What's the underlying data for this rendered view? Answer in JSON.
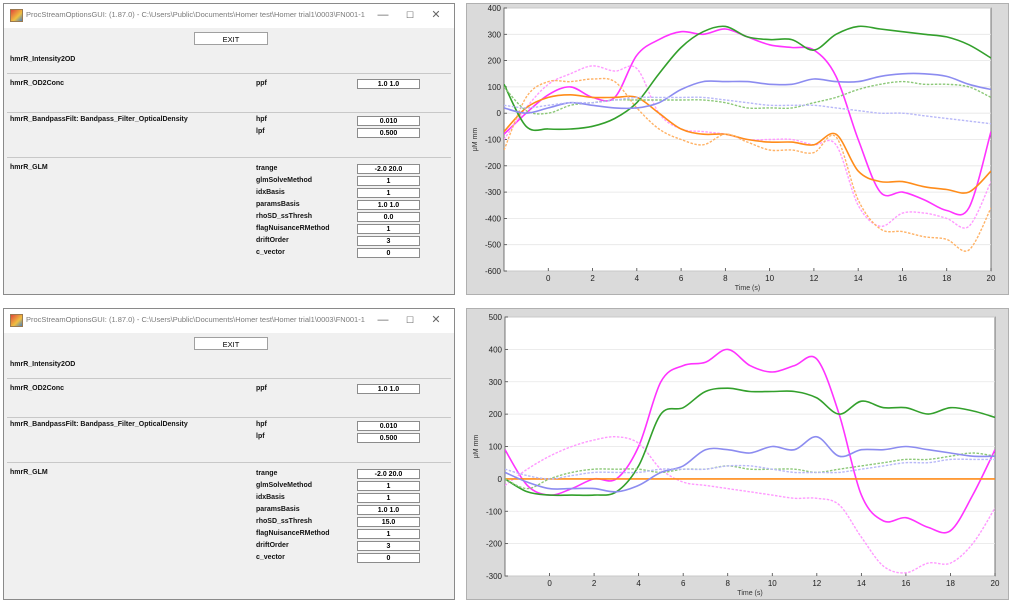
{
  "windows": [
    {
      "title": "ProcStreamOptionsGUI: (1.87.0) - C:\\Users\\Public\\Documents\\Homer test\\Homer trial1\\0003\\FN001-1",
      "exit_label": "EXIT",
      "functions": [
        {
          "name": "hmrR_Intensity2OD",
          "params": []
        },
        {
          "name": "hmrR_OD2Conc",
          "params": [
            {
              "label": "ppf",
              "value": "1.0 1.0"
            }
          ]
        },
        {
          "name": "hmrR_BandpassFilt: Bandpass_Filter_OpticalDensity",
          "params": [
            {
              "label": "hpf",
              "value": "0.010"
            },
            {
              "label": "lpf",
              "value": "0.500"
            }
          ]
        },
        {
          "name": "hmrR_GLM",
          "params": [
            {
              "label": "trange",
              "value": "-2.0 20.0"
            },
            {
              "label": "glmSolveMethod",
              "value": "1"
            },
            {
              "label": "idxBasis",
              "value": "1"
            },
            {
              "label": "paramsBasis",
              "value": "1.0 1.0"
            },
            {
              "label": "rhoSD_ssThresh",
              "value": "0.0"
            },
            {
              "label": "flagNuisanceRMethod",
              "value": "1"
            },
            {
              "label": "driftOrder",
              "value": "3"
            },
            {
              "label": "c_vector",
              "value": "0"
            }
          ]
        }
      ]
    },
    {
      "title": "ProcStreamOptionsGUI: (1.87.0) - C:\\Users\\Public\\Documents\\Homer test\\Homer trial1\\0003\\FN001-1",
      "exit_label": "EXIT",
      "functions": [
        {
          "name": "hmrR_Intensity2OD",
          "params": []
        },
        {
          "name": "hmrR_OD2Conc",
          "params": [
            {
              "label": "ppf",
              "value": "1.0 1.0"
            }
          ]
        },
        {
          "name": "hmrR_BandpassFilt: Bandpass_Filter_OpticalDensity",
          "params": [
            {
              "label": "hpf",
              "value": "0.010"
            },
            {
              "label": "lpf",
              "value": "0.500"
            }
          ]
        },
        {
          "name": "hmrR_GLM",
          "params": [
            {
              "label": "trange",
              "value": "-2.0 20.0"
            },
            {
              "label": "glmSolveMethod",
              "value": "1"
            },
            {
              "label": "idxBasis",
              "value": "1"
            },
            {
              "label": "paramsBasis",
              "value": "1.0 1.0"
            },
            {
              "label": "rhoSD_ssThresh",
              "value": "15.0"
            },
            {
              "label": "flagNuisanceRMethod",
              "value": "1"
            },
            {
              "label": "driftOrder",
              "value": "3"
            },
            {
              "label": "c_vector",
              "value": "0"
            }
          ]
        }
      ]
    }
  ],
  "chart_data": [
    {
      "type": "line",
      "xlabel": "Time (s)",
      "ylabel": "μM mm",
      "xlim": [
        -2,
        20
      ],
      "ylim": [
        -600,
        400
      ],
      "xticks": [
        0,
        2,
        4,
        6,
        8,
        10,
        12,
        14,
        16,
        18,
        20
      ],
      "yticks": [
        -600,
        -500,
        -400,
        -300,
        -200,
        -100,
        0,
        100,
        200,
        300,
        400
      ],
      "x": [
        -2,
        -1,
        0,
        1,
        2,
        3,
        4,
        5,
        6,
        7,
        8,
        9,
        10,
        11,
        12,
        13,
        14,
        15,
        16,
        17,
        18,
        19,
        20
      ],
      "series": [
        {
          "color": "#ff33ff",
          "style": "solid",
          "values": [
            -80,
            0,
            70,
            100,
            60,
            60,
            220,
            280,
            310,
            300,
            320,
            290,
            260,
            250,
            240,
            140,
            -100,
            -300,
            -300,
            -330,
            -370,
            -360,
            -70
          ]
        },
        {
          "color": "#ff99ff",
          "style": "dashed",
          "values": [
            -100,
            20,
            110,
            150,
            180,
            160,
            170,
            0,
            -60,
            -70,
            -80,
            -100,
            -100,
            -100,
            -120,
            -120,
            -350,
            -430,
            -380,
            -380,
            -400,
            -430,
            -260
          ]
        },
        {
          "color": "#ff8c1a",
          "style": "solid",
          "values": [
            -70,
            20,
            60,
            70,
            60,
            60,
            60,
            0,
            -60,
            -80,
            -80,
            -100,
            -110,
            -110,
            -120,
            -80,
            -220,
            -260,
            -260,
            -280,
            -290,
            -300,
            -220
          ]
        },
        {
          "color": "#ffb266",
          "style": "dashed",
          "values": [
            -140,
            60,
            120,
            120,
            130,
            120,
            20,
            -60,
            -100,
            -120,
            -80,
            -110,
            -140,
            -140,
            -150,
            -90,
            -330,
            -440,
            -450,
            -470,
            -480,
            -520,
            -360
          ]
        },
        {
          "color": "#33a02c",
          "style": "solid",
          "values": [
            110,
            -50,
            -60,
            -60,
            -50,
            -20,
            40,
            150,
            250,
            310,
            330,
            290,
            280,
            280,
            240,
            300,
            330,
            320,
            310,
            300,
            290,
            260,
            210
          ]
        },
        {
          "color": "#8cc878",
          "style": "dashed",
          "values": [
            100,
            10,
            0,
            30,
            40,
            50,
            50,
            50,
            50,
            50,
            40,
            20,
            20,
            20,
            40,
            60,
            90,
            110,
            120,
            110,
            110,
            100,
            60
          ]
        },
        {
          "color": "#8c8cf0",
          "style": "solid",
          "values": [
            20,
            0,
            20,
            40,
            30,
            20,
            20,
            40,
            90,
            120,
            120,
            120,
            110,
            110,
            130,
            120,
            120,
            140,
            150,
            150,
            140,
            110,
            90
          ]
        },
        {
          "color": "#b8b8f8",
          "style": "dashed",
          "values": [
            30,
            20,
            30,
            40,
            40,
            50,
            60,
            60,
            60,
            60,
            50,
            40,
            30,
            30,
            30,
            20,
            10,
            0,
            0,
            -10,
            -20,
            -30,
            -40
          ]
        }
      ]
    },
    {
      "type": "line",
      "xlabel": "Time (s)",
      "ylabel": "μM mm",
      "xlim": [
        -2,
        20
      ],
      "ylim": [
        -300,
        500
      ],
      "xticks": [
        0,
        2,
        4,
        6,
        8,
        10,
        12,
        14,
        16,
        18,
        20
      ],
      "yticks": [
        -300,
        -200,
        -100,
        0,
        100,
        200,
        300,
        400,
        500
      ],
      "x": [
        -2,
        -1,
        0,
        1,
        2,
        3,
        4,
        5,
        6,
        7,
        8,
        9,
        10,
        11,
        12,
        13,
        14,
        15,
        16,
        17,
        18,
        19,
        20
      ],
      "series": [
        {
          "color": "#ff33ff",
          "style": "solid",
          "values": [
            90,
            -20,
            -50,
            -30,
            0,
            0,
            100,
            300,
            350,
            360,
            400,
            350,
            330,
            350,
            370,
            200,
            -50,
            -130,
            -120,
            -150,
            -160,
            -50,
            90
          ]
        },
        {
          "color": "#ff99ff",
          "style": "dashed",
          "values": [
            -20,
            30,
            70,
            100,
            120,
            130,
            110,
            30,
            -10,
            -20,
            -30,
            -40,
            -50,
            -60,
            -60,
            -80,
            -180,
            -270,
            -290,
            -260,
            -260,
            -200,
            -90
          ]
        },
        {
          "color": "#ff8c1a",
          "style": "solid",
          "values": [
            0,
            0,
            0,
            0,
            0,
            0,
            0,
            0,
            0,
            0,
            0,
            0,
            0,
            0,
            0,
            0,
            0,
            0,
            0,
            0,
            0,
            0,
            0
          ]
        },
        {
          "color": "#33a02c",
          "style": "solid",
          "values": [
            0,
            -40,
            -50,
            -50,
            -50,
            -40,
            40,
            200,
            220,
            270,
            280,
            270,
            270,
            270,
            250,
            200,
            240,
            220,
            220,
            200,
            220,
            210,
            190
          ]
        },
        {
          "color": "#8cc878",
          "style": "dashed",
          "values": [
            0,
            -30,
            0,
            20,
            30,
            30,
            30,
            20,
            30,
            30,
            40,
            30,
            30,
            30,
            20,
            30,
            40,
            50,
            60,
            60,
            70,
            80,
            70
          ]
        },
        {
          "color": "#8c8cf0",
          "style": "solid",
          "values": [
            20,
            -10,
            -30,
            -30,
            -30,
            -40,
            -20,
            20,
            40,
            90,
            90,
            80,
            100,
            90,
            130,
            70,
            90,
            90,
            100,
            90,
            80,
            70,
            70
          ]
        },
        {
          "color": "#b8b8f8",
          "style": "dashed",
          "values": [
            30,
            10,
            0,
            10,
            20,
            20,
            20,
            30,
            30,
            30,
            40,
            40,
            30,
            20,
            20,
            20,
            30,
            40,
            50,
            50,
            60,
            60,
            60
          ]
        }
      ]
    }
  ]
}
